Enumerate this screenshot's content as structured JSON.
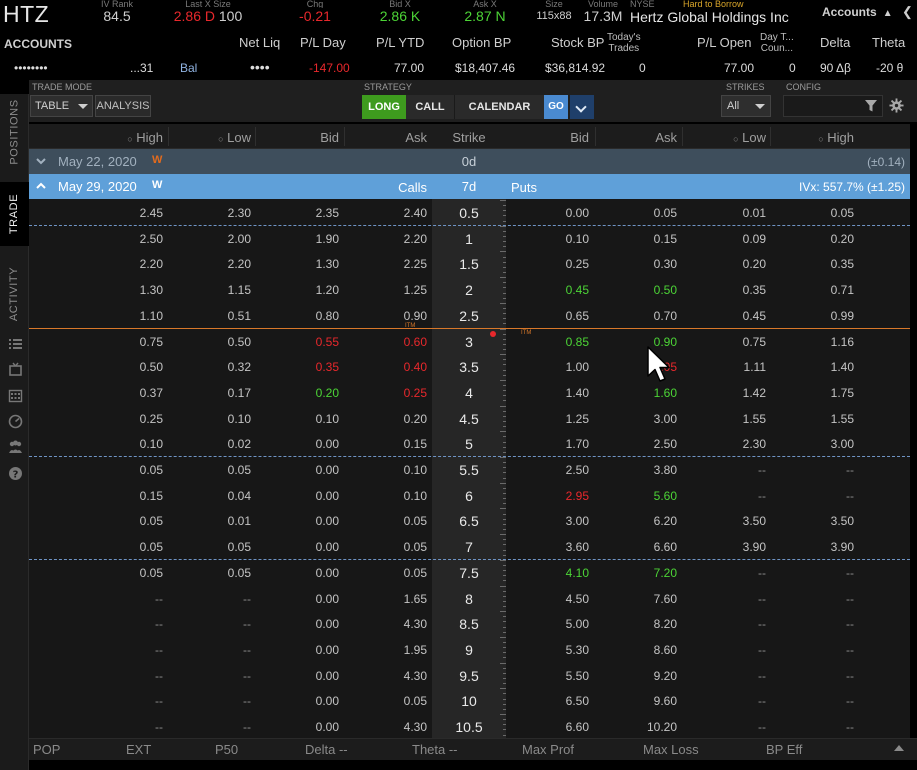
{
  "quote": {
    "symbol": "HTZ",
    "iv_rank_label": "IV Rank",
    "iv_rank": "84.5",
    "last_label": "Last X Size",
    "last": "2.86 D",
    "last_size": "100",
    "chg_label": "Chg",
    "chg": "-0.21",
    "bid_label": "Bid X",
    "bid": "2.86 K",
    "ask_label": "Ask X",
    "ask": "2.87 N",
    "size_label": "Size",
    "size": "115x88",
    "volume_label": "Volume",
    "volume": "17.3M",
    "exchange": "NYSE",
    "hard_to_borrow": "Hard to Borrow",
    "company": "Hertz Global Holdings Inc",
    "accounts_menu": "Accounts"
  },
  "accounts_row": {
    "title": "ACCOUNTS",
    "labels": {
      "net_liq": "Net Liq",
      "pl_day": "P/L Day",
      "pl_ytd": "P/L YTD",
      "option_bp": "Option BP",
      "stock_bp": "Stock BP",
      "todays_trades_1": "Today's",
      "todays_trades_2": "Trades",
      "pl_open": "P/L Open",
      "day_trade_1": "Day T...",
      "day_trade_2": "Coun...",
      "delta": "Delta",
      "theta": "Theta"
    },
    "values": {
      "account_masked": "••••••••",
      "account_suffix": "...31",
      "bal": "Bal",
      "net_liq": "••••",
      "pl_day": "-147.00",
      "pl_ytd": "77.00",
      "option_bp": "$18,407.46",
      "stock_bp": "$36,814.92",
      "todays_trades": "0",
      "pl_open": "77.00",
      "day_trade": "0",
      "delta": "90 Δβ",
      "theta": "-20 θ"
    }
  },
  "side_tabs": [
    "POSITIONS",
    "TRADE",
    "ACTIVITY"
  ],
  "strategy_bar": {
    "trade_mode_label": "TRADE MODE",
    "mode": "TABLE",
    "analysis": "ANALYSIS",
    "strategy_label": "STRATEGY",
    "long": "LONG",
    "call": "CALL",
    "calendar": "CALENDAR",
    "go": "GO",
    "strikes_label": "STRIKES",
    "strikes": "All",
    "config_label": "CONFIG"
  },
  "chain": {
    "headers": {
      "call_high": "High",
      "call_low": "Low",
      "call_bid": "Bid",
      "call_ask": "Ask",
      "strike": "Strike",
      "put_bid": "Bid",
      "put_ask": "Ask",
      "put_low": "Low",
      "put_high": "High"
    },
    "expirations": [
      {
        "date": "May 22, 2020",
        "weekly": "W",
        "days": "0d",
        "deviation": "(±0.14)"
      },
      {
        "date": "May 29, 2020",
        "weekly": "W",
        "days": "7d",
        "calls": "Calls",
        "puts": "Puts",
        "ivx": "IVx: 557.7% (±1.25)"
      }
    ],
    "rows": [
      {
        "ch": "2.45",
        "cl": "2.30",
        "cb": "2.35",
        "ca": "2.40",
        "k": "0.5",
        "pb": "0.00",
        "pa": "0.05",
        "pl": "0.01",
        "ph": "0.05"
      },
      {
        "ch": "2.50",
        "cl": "2.00",
        "cb": "1.90",
        "ca": "2.20",
        "k": "1",
        "pb": "0.10",
        "pa": "0.15",
        "pl": "0.09",
        "ph": "0.20"
      },
      {
        "ch": "2.20",
        "cl": "2.20",
        "cb": "1.30",
        "ca": "2.25",
        "k": "1.5",
        "pb": "0.25",
        "pa": "0.30",
        "pl": "0.20",
        "ph": "0.35"
      },
      {
        "ch": "1.30",
        "cl": "1.15",
        "cb": "1.20",
        "ca": "1.25",
        "k": "2",
        "pb": "0.45",
        "pa": "0.50",
        "pl": "0.35",
        "ph": "0.71"
      },
      {
        "ch": "1.10",
        "cl": "0.51",
        "cb": "0.80",
        "ca": "0.90",
        "k": "2.5",
        "pb": "0.65",
        "pa": "0.70",
        "pl": "0.45",
        "ph": "0.99"
      },
      {
        "ch": "0.75",
        "cl": "0.50",
        "cb": "0.55",
        "ca": "0.60",
        "k": "3",
        "pb": "0.85",
        "pa": "0.90",
        "pl": "0.75",
        "ph": "1.16"
      },
      {
        "ch": "0.50",
        "cl": "0.32",
        "cb": "0.35",
        "ca": "0.40",
        "k": "3.5",
        "pb": "1.00",
        "pa": "1.05",
        "pl": "1.11",
        "ph": "1.40"
      },
      {
        "ch": "0.37",
        "cl": "0.17",
        "cb": "0.20",
        "ca": "0.25",
        "k": "4",
        "pb": "1.40",
        "pa": "1.60",
        "pl": "1.42",
        "ph": "1.75"
      },
      {
        "ch": "0.25",
        "cl": "0.10",
        "cb": "0.10",
        "ca": "0.20",
        "k": "4.5",
        "pb": "1.25",
        "pa": "3.00",
        "pl": "1.55",
        "ph": "1.55"
      },
      {
        "ch": "0.10",
        "cl": "0.02",
        "cb": "0.00",
        "ca": "0.15",
        "k": "5",
        "pb": "1.70",
        "pa": "2.50",
        "pl": "2.30",
        "ph": "3.00"
      },
      {
        "ch": "0.05",
        "cl": "0.05",
        "cb": "0.00",
        "ca": "0.10",
        "k": "5.5",
        "pb": "2.50",
        "pa": "3.80",
        "pl": "--",
        "ph": "--"
      },
      {
        "ch": "0.15",
        "cl": "0.04",
        "cb": "0.00",
        "ca": "0.10",
        "k": "6",
        "pb": "2.95",
        "pa": "5.60",
        "pl": "--",
        "ph": "--"
      },
      {
        "ch": "0.05",
        "cl": "0.01",
        "cb": "0.00",
        "ca": "0.05",
        "k": "6.5",
        "pb": "3.00",
        "pa": "6.20",
        "pl": "3.50",
        "ph": "3.50"
      },
      {
        "ch": "0.05",
        "cl": "0.05",
        "cb": "0.00",
        "ca": "0.05",
        "k": "7",
        "pb": "3.60",
        "pa": "6.60",
        "pl": "3.90",
        "ph": "3.90"
      },
      {
        "ch": "0.05",
        "cl": "0.05",
        "cb": "0.00",
        "ca": "0.05",
        "k": "7.5",
        "pb": "4.10",
        "pa": "7.20",
        "pl": "--",
        "ph": "--"
      },
      {
        "ch": "--",
        "cl": "--",
        "cb": "0.00",
        "ca": "1.65",
        "k": "8",
        "pb": "4.50",
        "pa": "7.60",
        "pl": "--",
        "ph": "--"
      },
      {
        "ch": "--",
        "cl": "--",
        "cb": "0.00",
        "ca": "4.30",
        "k": "8.5",
        "pb": "5.00",
        "pa": "8.20",
        "pl": "--",
        "ph": "--"
      },
      {
        "ch": "--",
        "cl": "--",
        "cb": "0.00",
        "ca": "1.95",
        "k": "9",
        "pb": "5.30",
        "pa": "8.60",
        "pl": "--",
        "ph": "--"
      },
      {
        "ch": "--",
        "cl": "--",
        "cb": "0.00",
        "ca": "4.30",
        "k": "9.5",
        "pb": "5.50",
        "pa": "9.20",
        "pl": "--",
        "ph": "--"
      },
      {
        "ch": "--",
        "cl": "--",
        "cb": "0.00",
        "ca": "0.05",
        "k": "10",
        "pb": "6.50",
        "pa": "9.60",
        "pl": "--",
        "ph": "--"
      },
      {
        "ch": "--",
        "cl": "--",
        "cb": "0.00",
        "ca": "4.30",
        "k": "10.5",
        "pb": "6.60",
        "pa": "10.20",
        "pl": "--",
        "ph": "--"
      }
    ],
    "itm_label": "ITM"
  },
  "bottom_bar": {
    "pop": "POP",
    "ext": "EXT",
    "p50": "P50",
    "delta": "Delta --",
    "theta": "Theta --",
    "max_prof": "Max Prof",
    "max_loss": "Max Loss",
    "bp_eff": "BP Eff"
  },
  "colors": {
    "green": "#4cd436",
    "red": "#e8282c",
    "accent_blue": "#5fa0d9",
    "long_green": "#3e9b1e",
    "orange": "#e36b1d",
    "dashed_sep": "#6f94c5"
  },
  "icons": [
    "filter-icon",
    "gear-icon",
    "chevron-up-icon",
    "chevron-down-icon",
    "list-icon",
    "cursor-icon"
  ]
}
